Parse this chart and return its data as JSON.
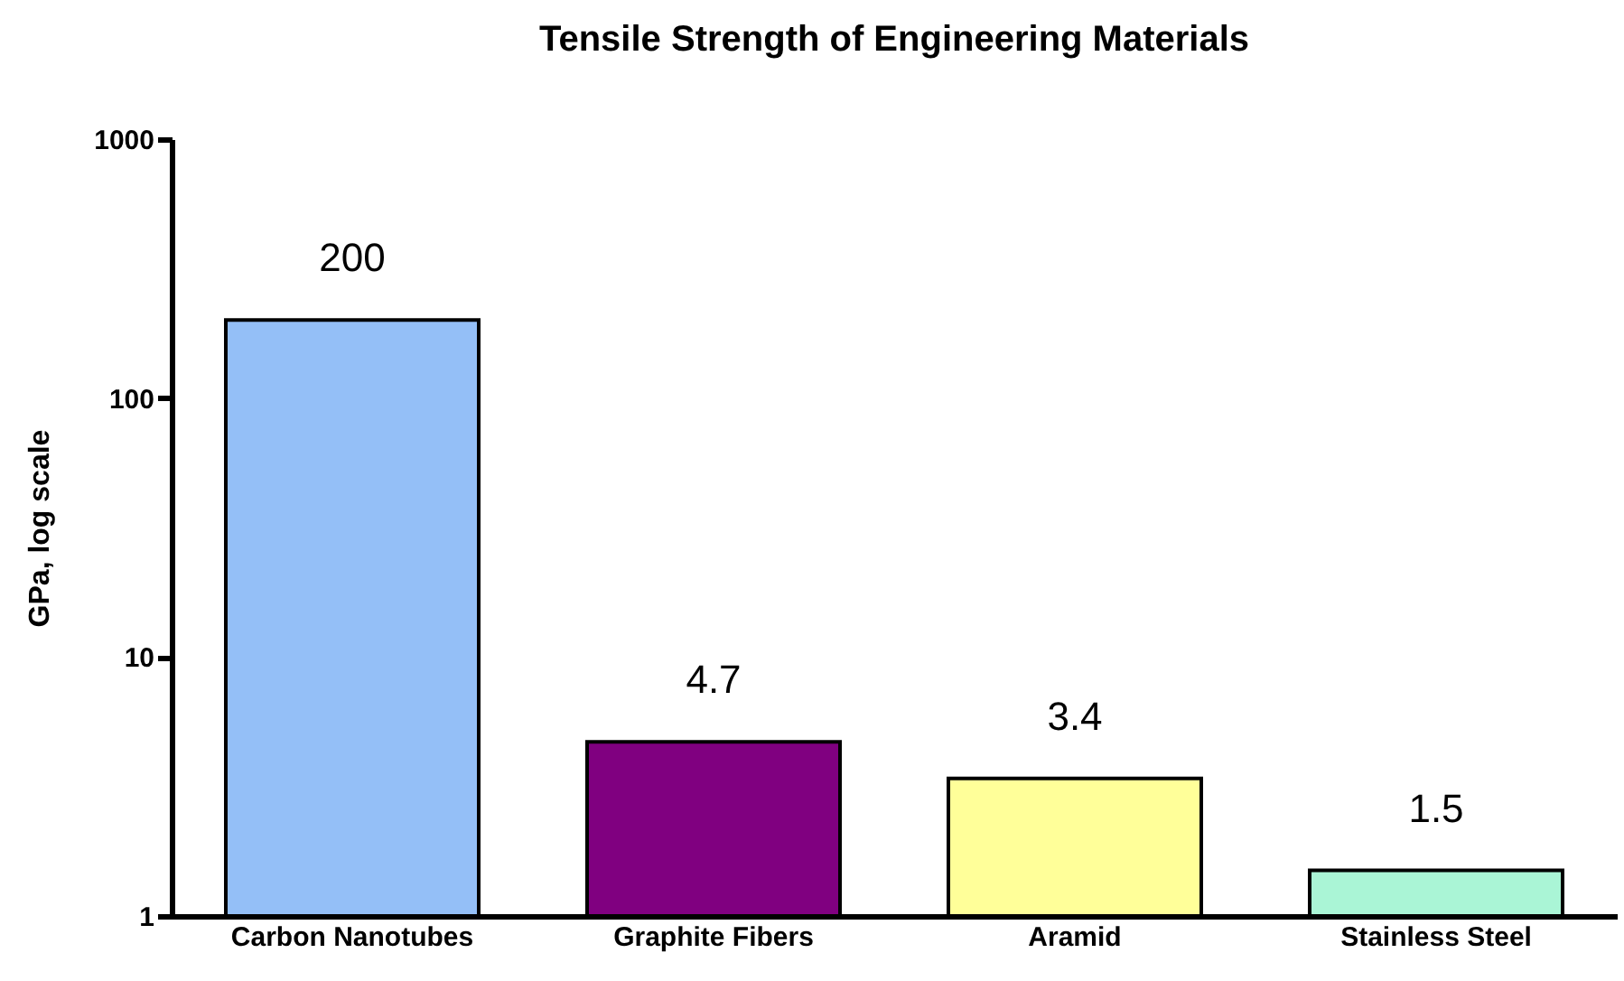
{
  "chart_data": {
    "type": "bar",
    "title": "Tensile Strength of Engineering Materials",
    "ylabel": "GPa, log scale",
    "categories": [
      "Carbon Nanotubes",
      "Graphite Fibers",
      "Aramid",
      "Stainless Steel"
    ],
    "values": [
      200,
      4.7,
      3.4,
      1.5
    ],
    "colors": [
      "#94bff7",
      "#800080",
      "#ffff99",
      "#aaf5d6"
    ],
    "log": true,
    "ylim": [
      1,
      1000
    ],
    "yticks": [
      1,
      10,
      100,
      1000
    ],
    "grid": false,
    "data_labels": true
  }
}
